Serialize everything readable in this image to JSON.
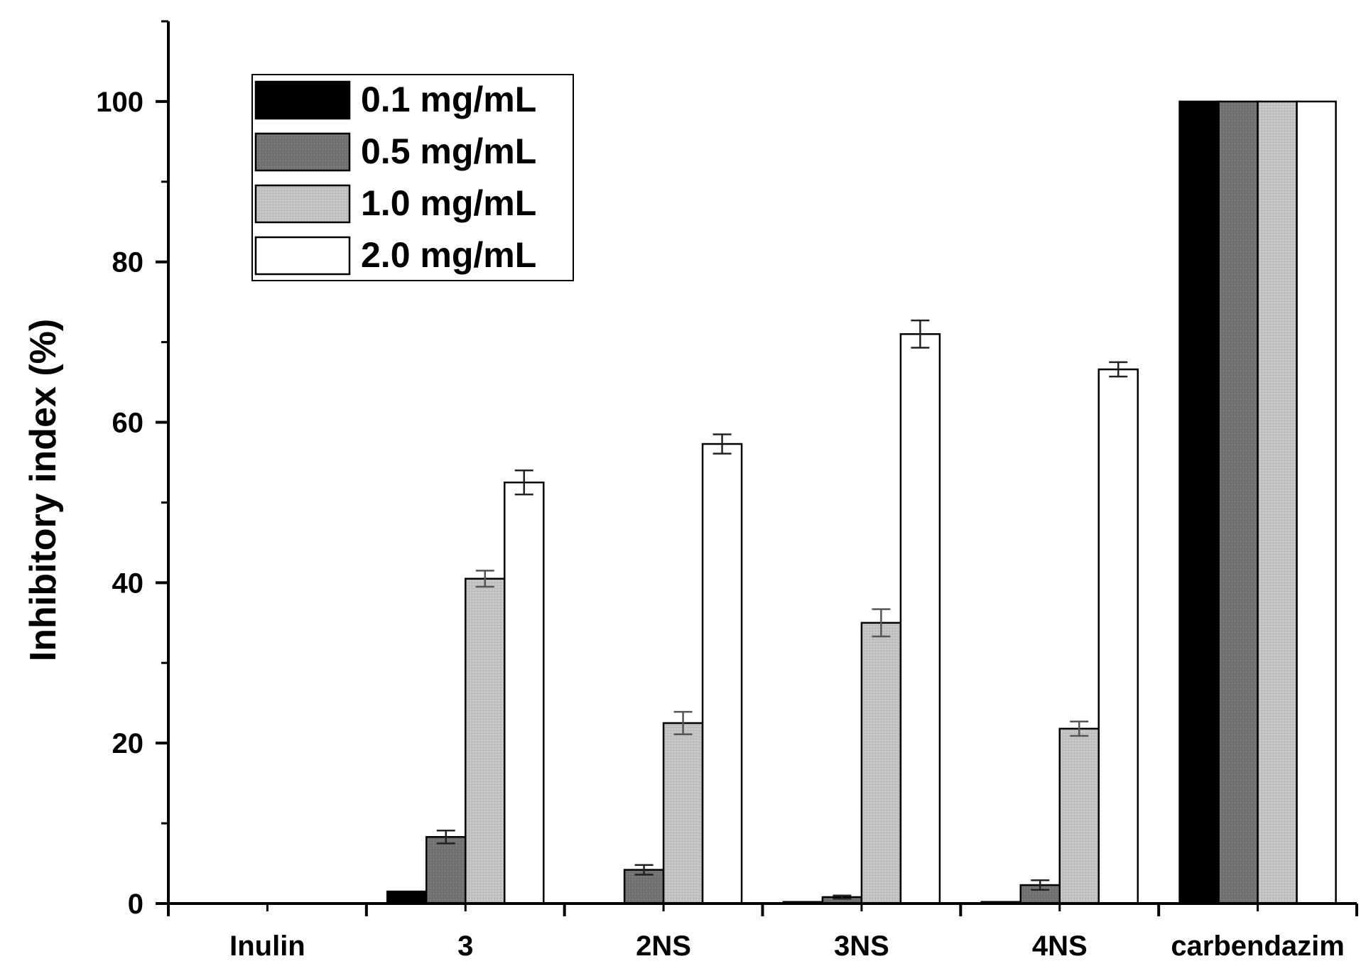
{
  "chart_data": {
    "type": "bar",
    "title": "",
    "xlabel": "",
    "ylabel": "Inhibitory index (%)",
    "ylim": [
      0,
      110
    ],
    "yticks": [
      0,
      20,
      40,
      60,
      80,
      100
    ],
    "tick_labels": [
      "0",
      "20",
      "40",
      "60",
      "80",
      "100"
    ],
    "grid": false,
    "legend_position": "top-left",
    "categories": [
      "Inulin",
      "3",
      "2NS",
      "3NS",
      "4NS",
      "carbendazim"
    ],
    "series": [
      {
        "name": "0.1 mg/mL",
        "color": "#000000",
        "values": [
          0,
          1.5,
          0,
          0.2,
          0.2,
          100
        ],
        "errors": [
          0,
          0,
          0,
          0,
          0,
          0
        ]
      },
      {
        "name": "0.5 mg/mL",
        "color": "#737373",
        "values": [
          0,
          8.3,
          4.2,
          0.8,
          2.3,
          100
        ],
        "errors": [
          0,
          0.8,
          0.6,
          0.2,
          0.6,
          0
        ]
      },
      {
        "name": "1.0 mg/mL",
        "color": "#bfbfbf",
        "values": [
          0,
          40.5,
          22.5,
          35.0,
          21.8,
          100
        ],
        "errors": [
          0,
          1.0,
          1.4,
          1.7,
          0.9,
          0
        ]
      },
      {
        "name": "2.0 mg/mL",
        "color": "#ffffff",
        "values": [
          0,
          52.5,
          57.3,
          71.0,
          66.6,
          100
        ],
        "errors": [
          0,
          1.5,
          1.2,
          1.7,
          0.9,
          0
        ]
      }
    ]
  }
}
